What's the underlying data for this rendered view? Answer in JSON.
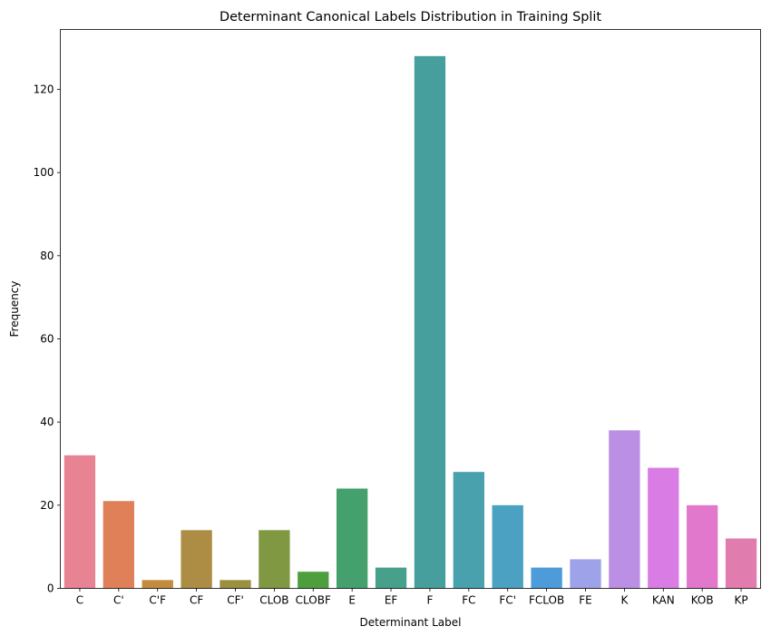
{
  "chart_data": {
    "type": "bar",
    "title": "Determinant Canonical Labels Distribution in Training Split",
    "xlabel": "Determinant Label",
    "ylabel": "Frequency",
    "categories": [
      "C",
      "C'",
      "C'F",
      "CF",
      "CF'",
      "CLOB",
      "CLOBF",
      "E",
      "EF",
      "F",
      "FC",
      "FC'",
      "FCLOB",
      "FE",
      "K",
      "KAN",
      "KOB",
      "KP"
    ],
    "values": [
      32,
      21,
      2,
      14,
      2,
      14,
      4,
      24,
      5,
      128,
      28,
      20,
      5,
      7,
      38,
      29,
      20,
      12
    ],
    "colors": [
      "#e88393",
      "#e08058",
      "#c48a3d",
      "#ac8d43",
      "#9c8f3f",
      "#7f9841",
      "#4e9e3e",
      "#44a06c",
      "#47a08a",
      "#469f9c",
      "#48a1ad",
      "#4aa1c1",
      "#4d9bd8",
      "#9ea2e8",
      "#bb8fe3",
      "#d97ce4",
      "#e278cb",
      "#e17cae"
    ],
    "ylim": [
      0,
      134.4
    ],
    "yticks": [
      0,
      20,
      40,
      60,
      80,
      100,
      120
    ],
    "grid": false,
    "legend": "none"
  }
}
